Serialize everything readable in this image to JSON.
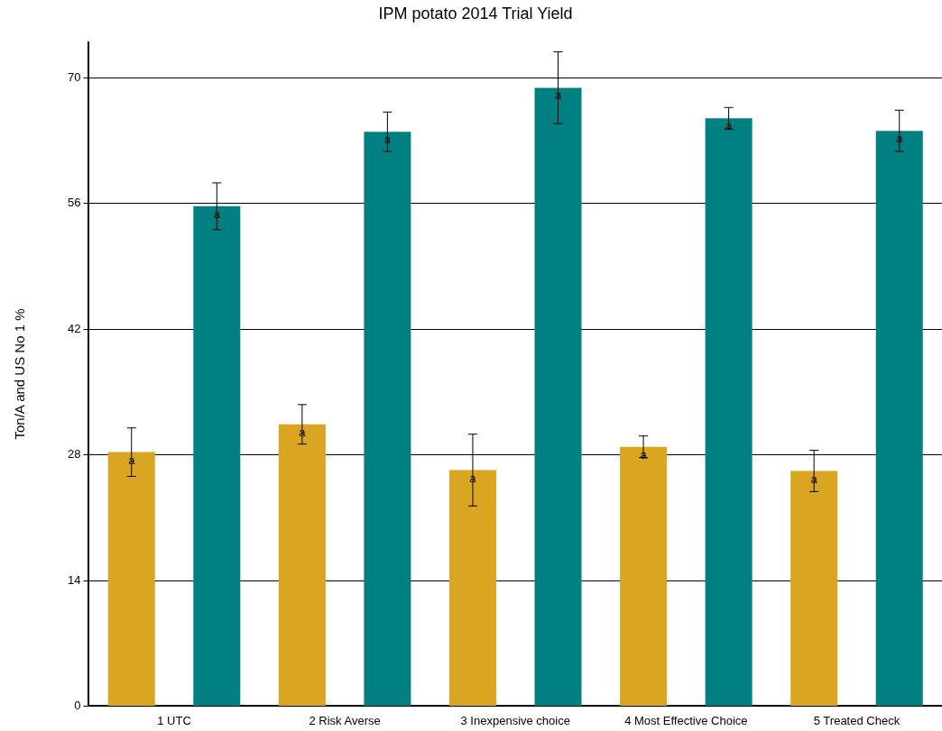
{
  "chart_data": {
    "type": "bar",
    "title": "IPM potato 2014 Trial Yield",
    "ylabel": "Ton/A and US No 1 %",
    "categories": [
      "1 UTC",
      "2 Risk Averse",
      "3 Inexpensive choice",
      "4 Most Effective Choice",
      "5 Treated Check"
    ],
    "series": [
      {
        "color": "#daa520",
        "values": [
          28.3,
          31.4,
          26.3,
          28.9,
          26.2
        ],
        "errors": [
          2.7,
          2.2,
          4.0,
          1.2,
          2.3
        ],
        "value_labels": [
          "a",
          "a",
          "a",
          "a",
          "a"
        ]
      },
      {
        "color": "#008080",
        "values": [
          55.7,
          64.0,
          68.9,
          65.5,
          64.1
        ],
        "errors": [
          2.6,
          2.2,
          4.0,
          1.2,
          2.3
        ],
        "value_labels": [
          "a",
          "a",
          "a",
          "a",
          "a"
        ]
      }
    ],
    "ylim": [
      0,
      74
    ],
    "yticks": [
      0,
      14,
      28,
      42,
      56,
      70
    ],
    "grid": "y",
    "legend": false
  }
}
